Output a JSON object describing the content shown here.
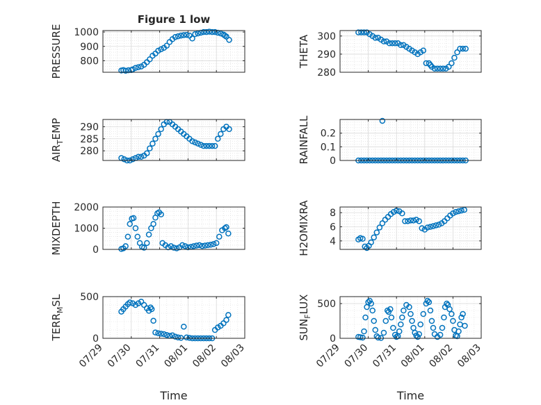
{
  "figure": {
    "title": "Figure 1 low"
  },
  "chart_data": [
    {
      "type": "scatter",
      "title": "Figure 1 low",
      "ylabel": "PRESSURE",
      "xlabel": "",
      "ylim": [
        720,
        1010
      ],
      "yticks": [
        800,
        900,
        1000
      ],
      "xlim": [
        0,
        5
      ],
      "grid": true,
      "x": [
        0.65,
        0.72,
        0.8,
        0.9,
        1.0,
        1.05,
        1.15,
        1.25,
        1.35,
        1.45,
        1.55,
        1.65,
        1.75,
        1.85,
        1.95,
        2.05,
        2.15,
        2.25,
        2.35,
        2.45,
        2.55,
        2.65,
        2.75,
        2.85,
        2.95,
        3.05,
        3.15,
        3.25,
        3.35,
        3.45,
        3.55,
        3.65,
        3.75,
        3.85,
        3.95,
        4.05,
        4.15,
        4.25,
        4.3,
        4.35,
        4.45
      ],
      "y": [
        732,
        735,
        730,
        734,
        735,
        740,
        750,
        755,
        760,
        772,
        790,
        810,
        835,
        850,
        870,
        880,
        890,
        905,
        930,
        950,
        965,
        970,
        975,
        978,
        980,
        975,
        955,
        985,
        990,
        995,
        1000,
        1000,
        1002,
        1000,
        1000,
        995,
        990,
        982,
        975,
        968,
        945
      ]
    },
    {
      "type": "scatter",
      "ylabel": "THETA",
      "xlabel": "",
      "ylim": [
        280,
        303
      ],
      "yticks": [
        280,
        290,
        300
      ],
      "xlim": [
        0,
        5
      ],
      "grid": true,
      "x": [
        0.65,
        0.75,
        0.85,
        0.95,
        1.05,
        1.15,
        1.25,
        1.35,
        1.45,
        1.55,
        1.65,
        1.75,
        1.85,
        1.95,
        2.05,
        2.15,
        2.25,
        2.35,
        2.45,
        2.55,
        2.65,
        2.75,
        2.85,
        2.95,
        3.05,
        3.15,
        3.2,
        3.25,
        3.35,
        3.45,
        3.55,
        3.65,
        3.75,
        3.85,
        3.95,
        4.05,
        4.15,
        4.25,
        4.35,
        4.45
      ],
      "y": [
        302,
        302,
        302,
        302,
        301,
        300,
        299,
        299,
        298,
        297,
        297,
        296,
        296,
        296,
        296,
        295,
        295,
        294,
        293,
        292,
        291,
        290,
        291,
        292,
        285,
        285,
        284,
        283,
        282,
        282,
        282,
        282,
        282,
        283,
        285,
        288,
        291,
        293,
        293,
        293
      ]
    },
    {
      "type": "scatter",
      "ylabel": "AIR_TEMP",
      "xlabel": "",
      "ylim": [
        276,
        293
      ],
      "yticks": [
        280,
        285,
        290
      ],
      "xlim": [
        0,
        5
      ],
      "grid": true,
      "x": [
        0.65,
        0.75,
        0.85,
        0.95,
        1.05,
        1.15,
        1.25,
        1.35,
        1.45,
        1.55,
        1.65,
        1.75,
        1.85,
        1.95,
        2.05,
        2.15,
        2.25,
        2.35,
        2.45,
        2.55,
        2.65,
        2.75,
        2.85,
        2.95,
        3.05,
        3.15,
        3.25,
        3.35,
        3.45,
        3.55,
        3.65,
        3.75,
        3.85,
        3.95,
        4.05,
        4.15,
        4.25,
        4.35,
        4.45
      ],
      "y": [
        277,
        276.5,
        276,
        276,
        276.5,
        277,
        277.5,
        277.5,
        278,
        279,
        281,
        283,
        285,
        287,
        289,
        291,
        292,
        292,
        291,
        290,
        289,
        288,
        287,
        286,
        285,
        284,
        283.5,
        283,
        282.5,
        282,
        282,
        282,
        282,
        282,
        285,
        287,
        289,
        290,
        289
      ]
    },
    {
      "type": "scatter",
      "ylabel": "RAINFALL",
      "xlabel": "",
      "ylim": [
        0,
        0.3
      ],
      "yticks": [
        0,
        0.1,
        0.2
      ],
      "xlim": [
        0,
        5
      ],
      "grid": true,
      "x": [
        0.65,
        0.75,
        0.85,
        0.95,
        1.05,
        1.15,
        1.25,
        1.35,
        1.45,
        1.5,
        1.55,
        1.65,
        1.75,
        1.85,
        1.95,
        2.05,
        2.15,
        2.25,
        2.35,
        2.45,
        2.55,
        2.65,
        2.75,
        2.85,
        2.95,
        3.05,
        3.15,
        3.25,
        3.35,
        3.45,
        3.55,
        3.65,
        3.75,
        3.85,
        3.95,
        4.05,
        4.15,
        4.25,
        4.35,
        4.45
      ],
      "y": [
        0,
        0,
        0,
        0,
        0,
        0,
        0,
        0,
        0,
        0.29,
        0,
        0,
        0,
        0,
        0,
        0,
        0,
        0,
        0,
        0,
        0,
        0,
        0,
        0,
        0,
        0,
        0,
        0,
        0,
        0,
        0,
        0,
        0,
        0,
        0,
        0,
        0,
        0,
        0,
        0
      ]
    },
    {
      "type": "scatter",
      "ylabel": "MIXDEPTH",
      "xlabel": "",
      "ylim": [
        0,
        2000
      ],
      "yticks": [
        0,
        1000,
        2000
      ],
      "xlim": [
        0,
        5
      ],
      "grid": true,
      "x": [
        0.65,
        0.72,
        0.8,
        0.88,
        0.95,
        1.02,
        1.08,
        1.15,
        1.22,
        1.3,
        1.38,
        1.45,
        1.55,
        1.62,
        1.7,
        1.78,
        1.85,
        1.92,
        1.98,
        2.05,
        2.1,
        2.2,
        2.3,
        2.4,
        2.5,
        2.6,
        2.7,
        2.8,
        2.9,
        3.0,
        3.1,
        3.2,
        3.3,
        3.4,
        3.5,
        3.6,
        3.7,
        3.8,
        3.9,
        4.0,
        4.1,
        4.2,
        4.3,
        4.35,
        4.42
      ],
      "y": [
        20,
        50,
        150,
        600,
        1200,
        1450,
        1480,
        1000,
        600,
        300,
        120,
        80,
        300,
        700,
        1000,
        1200,
        1500,
        1700,
        1750,
        1650,
        300,
        200,
        100,
        150,
        80,
        50,
        100,
        200,
        150,
        100,
        120,
        150,
        180,
        200,
        160,
        180,
        200,
        220,
        250,
        300,
        600,
        900,
        1000,
        1050,
        750
      ]
    },
    {
      "type": "scatter",
      "ylabel": "H2OMIXRA",
      "xlabel": "",
      "ylim": [
        2.8,
        8.8
      ],
      "yticks": [
        4,
        6,
        8
      ],
      "xlim": [
        0,
        5
      ],
      "grid": true,
      "x": [
        0.65,
        0.72,
        0.8,
        0.88,
        0.95,
        1.02,
        1.1,
        1.2,
        1.3,
        1.4,
        1.5,
        1.6,
        1.7,
        1.8,
        1.9,
        2.0,
        2.1,
        2.2,
        2.3,
        2.4,
        2.5,
        2.6,
        2.7,
        2.8,
        2.9,
        3.0,
        3.1,
        3.2,
        3.3,
        3.4,
        3.5,
        3.6,
        3.7,
        3.8,
        3.9,
        4.0,
        4.1,
        4.2,
        4.3,
        4.4
      ],
      "y": [
        4.2,
        4.4,
        4.3,
        3.2,
        3,
        3.3,
        3.8,
        4.5,
        5.2,
        5.9,
        6.5,
        7.0,
        7.4,
        7.8,
        8.1,
        8.3,
        8.2,
        7.9,
        6.8,
        6.8,
        6.9,
        6.9,
        7.0,
        6.8,
        5.8,
        5.6,
        5.9,
        6.0,
        6.1,
        6.2,
        6.3,
        6.5,
        6.8,
        7.2,
        7.6,
        7.9,
        8.1,
        8.2,
        8.3,
        8.4
      ]
    },
    {
      "type": "scatter",
      "ylabel": "TERR_MSL",
      "xlabel": "Time",
      "ylim": [
        0,
        500
      ],
      "yticks": [
        0,
        500
      ],
      "xlim": [
        0,
        5
      ],
      "grid": true,
      "xticks": [
        0,
        1,
        2,
        3,
        4,
        5
      ],
      "xticklabels": [
        "07/29",
        "07/30",
        "07/31",
        "08/01",
        "08/02",
        "08/03"
      ],
      "x": [
        0.65,
        0.72,
        0.8,
        0.88,
        0.95,
        1.05,
        1.15,
        1.25,
        1.35,
        1.45,
        1.55,
        1.62,
        1.68,
        1.72,
        1.78,
        1.85,
        1.95,
        2.05,
        2.15,
        2.25,
        2.35,
        2.45,
        2.55,
        2.65,
        2.75,
        2.85,
        2.95,
        3.05,
        3.15,
        3.25,
        3.35,
        3.45,
        3.55,
        3.65,
        3.75,
        3.85,
        3.95,
        4.05,
        4.15,
        4.25,
        4.35,
        4.42
      ],
      "y": [
        320,
        350,
        380,
        410,
        430,
        420,
        400,
        420,
        440,
        400,
        360,
        330,
        370,
        350,
        210,
        70,
        60,
        55,
        50,
        40,
        30,
        35,
        20,
        10,
        5,
        140,
        10,
        5,
        0,
        0,
        0,
        0,
        0,
        0,
        0,
        0,
        100,
        130,
        150,
        180,
        220,
        280
      ]
    },
    {
      "type": "scatter",
      "ylabel": "SUN_FLUX",
      "xlabel": "Time",
      "ylim": [
        0,
        600
      ],
      "yticks": [
        0,
        500
      ],
      "xlim": [
        0,
        5
      ],
      "grid": true,
      "xticks": [
        0,
        1,
        2,
        3,
        4,
        5
      ],
      "xticklabels": [
        "07/29",
        "07/30",
        "07/31",
        "08/01",
        "08/02",
        "08/03"
      ],
      "x": [
        0.65,
        0.72,
        0.8,
        0.85,
        0.9,
        0.95,
        1.0,
        1.05,
        1.1,
        1.15,
        1.2,
        1.25,
        1.3,
        1.35,
        1.45,
        1.55,
        1.62,
        1.68,
        1.72,
        1.78,
        1.82,
        1.88,
        1.95,
        2.0,
        2.05,
        2.1,
        2.15,
        2.2,
        2.25,
        2.35,
        2.45,
        2.5,
        2.55,
        2.6,
        2.65,
        2.7,
        2.75,
        2.8,
        2.85,
        2.95,
        3.05,
        3.1,
        3.15,
        3.2,
        3.25,
        3.3,
        3.35,
        3.45,
        3.55,
        3.62,
        3.68,
        3.72,
        3.78,
        3.82,
        3.88,
        3.95,
        4.0,
        4.05,
        4.1,
        4.15,
        4.2,
        4.25,
        4.3,
        4.35,
        4.42
      ],
      "y": [
        20,
        15,
        10,
        100,
        300,
        450,
        520,
        540,
        500,
        400,
        250,
        120,
        30,
        10,
        5,
        80,
        250,
        400,
        380,
        420,
        300,
        150,
        50,
        20,
        30,
        100,
        200,
        300,
        400,
        480,
        450,
        350,
        250,
        150,
        80,
        40,
        20,
        60,
        200,
        350,
        500,
        540,
        520,
        400,
        250,
        150,
        60,
        20,
        50,
        150,
        300,
        450,
        500,
        480,
        420,
        350,
        250,
        120,
        40,
        30,
        100,
        200,
        300,
        350,
        180
      ]
    }
  ]
}
